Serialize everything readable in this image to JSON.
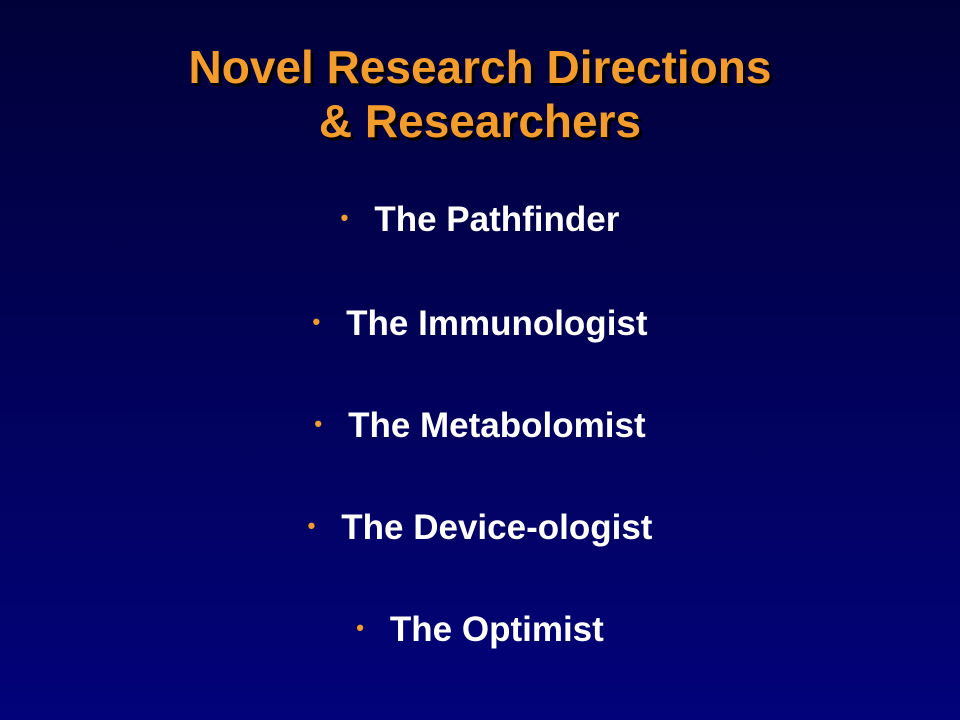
{
  "slide": {
    "title_line1": "Novel Research Directions",
    "title_line2": "& Researchers",
    "bullet_glyph": "•",
    "items": [
      {
        "label": "The Pathfinder"
      },
      {
        "label": "The Immunologist"
      },
      {
        "label": "The Metabolomist"
      },
      {
        "label": "The Device-ologist"
      },
      {
        "label": "The Optimist"
      }
    ]
  },
  "colors": {
    "background_top": "#01013a",
    "background_bottom": "#02027a",
    "title": "#f39c2c",
    "bullet": "#f39c2c",
    "text": "#ffffff"
  }
}
